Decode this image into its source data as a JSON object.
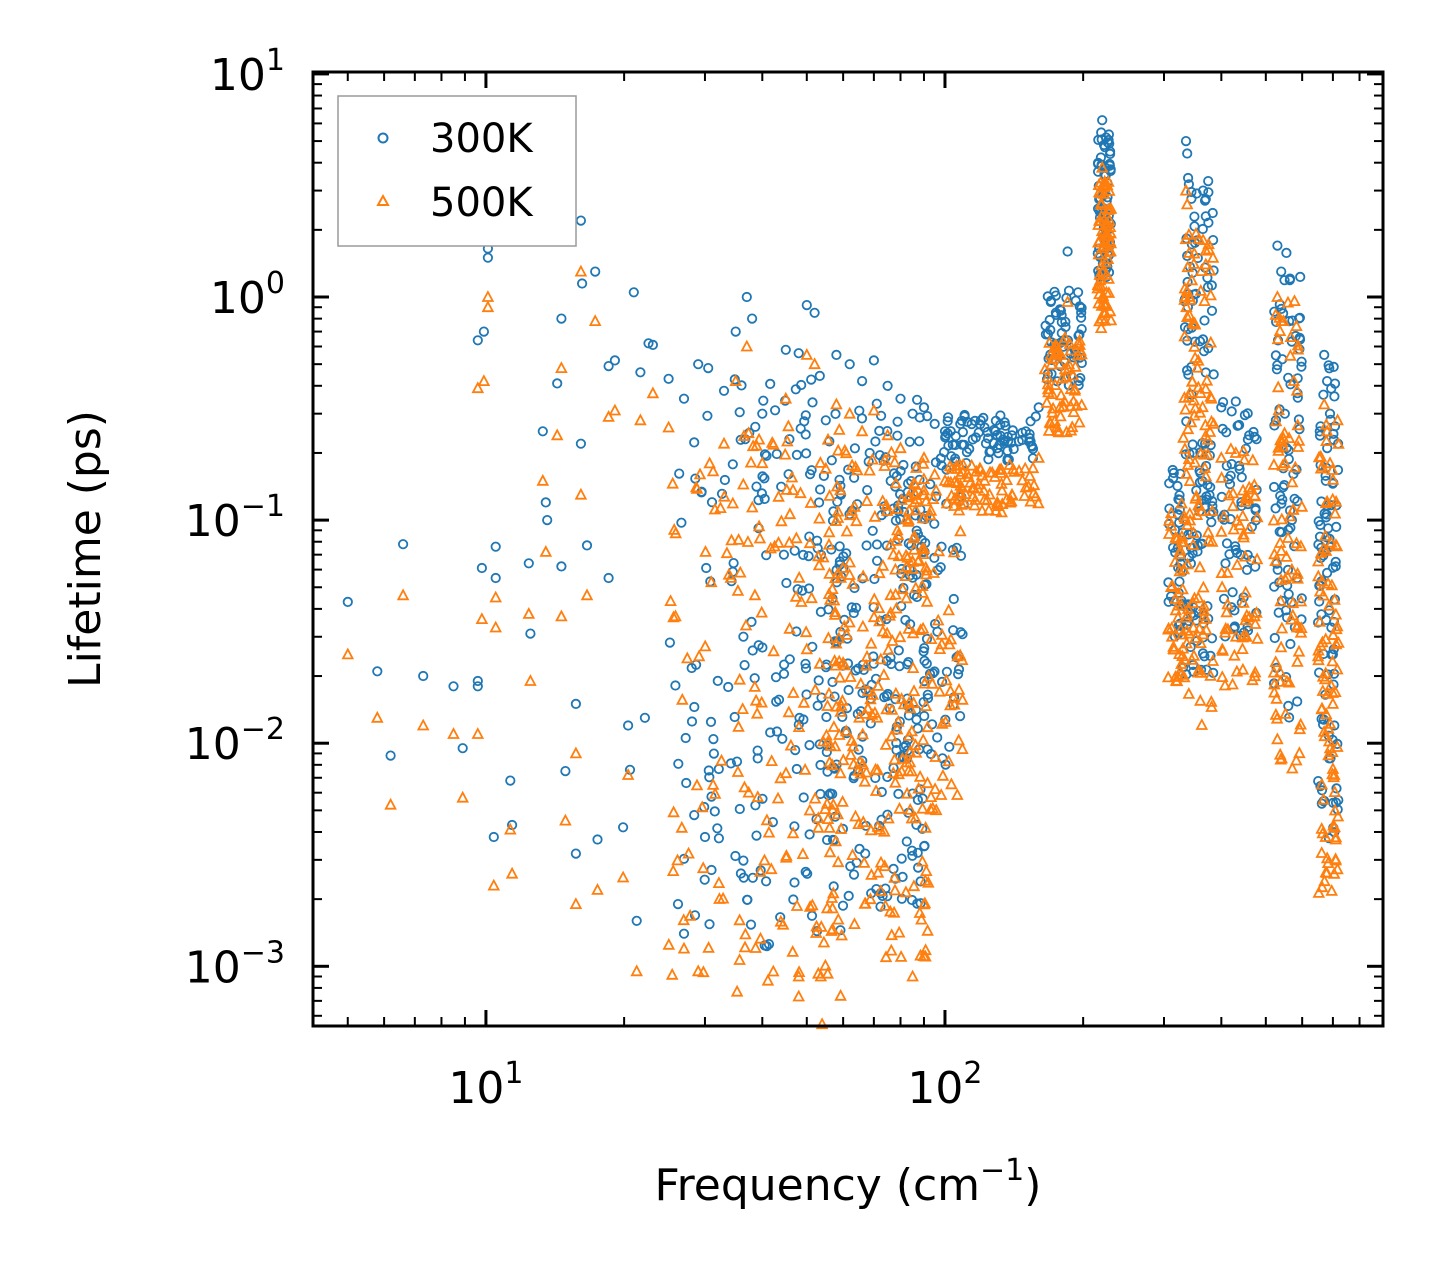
{
  "chart_data": {
    "type": "scatter",
    "title": "",
    "xlabel": "Frequency (cm",
    "xlabel_sup": "−1",
    "xlabel_end": ")",
    "ylabel": "Lifetime (ps)",
    "xscale": "log",
    "yscale": "log",
    "xlim": [
      4.2,
      900
    ],
    "ylim": [
      0.00054,
      10.2
    ],
    "x_ticks": [
      {
        "value": 10,
        "base": "10",
        "exp": "1"
      },
      {
        "value": 100,
        "base": "10",
        "exp": "2"
      }
    ],
    "y_ticks": [
      {
        "value": 0.001,
        "base": "10",
        "exp": "−3"
      },
      {
        "value": 0.01,
        "base": "10",
        "exp": "−2"
      },
      {
        "value": 0.1,
        "base": "10",
        "exp": "−1"
      },
      {
        "value": 1,
        "base": "10",
        "exp": "0"
      },
      {
        "value": 10,
        "base": "10",
        "exp": "1"
      }
    ],
    "legend_position": "top-left",
    "series": [
      {
        "name": "300K",
        "marker": "circle",
        "color": "#1f77b4",
        "points": [
          [
            5.0,
            0.043
          ],
          [
            5.8,
            0.021
          ],
          [
            6.2,
            0.0088
          ],
          [
            6.6,
            0.078
          ],
          [
            7.3,
            0.02
          ],
          [
            8.5,
            0.018
          ],
          [
            8.9,
            0.0095
          ],
          [
            9.6,
            0.019
          ],
          [
            9.6,
            0.018
          ],
          [
            9.8,
            0.061
          ],
          [
            10.4,
            0.0038
          ],
          [
            10.5,
            0.076
          ],
          [
            10.5,
            0.055
          ],
          [
            11.3,
            0.0068
          ],
          [
            11.4,
            0.0043
          ],
          [
            12.4,
            0.064
          ],
          [
            12.5,
            0.031
          ],
          [
            13.3,
            0.25
          ],
          [
            13.5,
            0.12
          ],
          [
            13.6,
            0.1
          ],
          [
            14.3,
            0.41
          ],
          [
            14.6,
            0.062
          ],
          [
            14.9,
            0.0075
          ],
          [
            15.7,
            0.015
          ],
          [
            15.7,
            0.0032
          ],
          [
            16.1,
            0.22
          ],
          [
            16.6,
            0.077
          ],
          [
            17.5,
            0.0037
          ],
          [
            18.5,
            0.49
          ],
          [
            18.5,
            0.055
          ],
          [
            19.9,
            0.0042
          ],
          [
            20.4,
            0.012
          ],
          [
            20.6,
            0.0076
          ],
          [
            21.0,
            1.05
          ],
          [
            21.3,
            0.0016
          ],
          [
            22.2,
            0.013
          ],
          [
            23.1,
            0.61
          ],
          [
            26.2,
            0.0019
          ],
          [
            27.0,
            0.0014
          ],
          [
            30.0,
            0.0038
          ],
          [
            9.6,
            0.64
          ],
          [
            9.9,
            0.7
          ],
          [
            10.1,
            1.5
          ],
          [
            10.1,
            1.65
          ],
          [
            14.6,
            0.8
          ],
          [
            16.1,
            2.2
          ],
          [
            17.3,
            1.3
          ],
          [
            16.2,
            1.15
          ],
          [
            19.1,
            0.52
          ],
          [
            21.7,
            0.46
          ],
          [
            22.6,
            0.62
          ],
          [
            25.0,
            0.43
          ],
          [
            27.0,
            0.35
          ],
          [
            29.0,
            0.5
          ],
          [
            30.5,
            0.48
          ],
          [
            33.0,
            0.38
          ],
          [
            35.0,
            0.7
          ],
          [
            37.0,
            1.0
          ],
          [
            38.0,
            0.8
          ],
          [
            40.0,
            0.3
          ],
          [
            45.0,
            0.58
          ],
          [
            48.0,
            0.56
          ],
          [
            50.0,
            0.92
          ],
          [
            52.0,
            0.85
          ],
          [
            55.0,
            0.28
          ],
          [
            58.0,
            0.55
          ],
          [
            62.0,
            0.5
          ],
          [
            66.0,
            0.42
          ],
          [
            70.0,
            0.52
          ],
          [
            75.0,
            0.4
          ],
          [
            80.0,
            0.35
          ],
          [
            85.0,
            0.3
          ],
          [
            90.0,
            0.32
          ],
          [
            95.0,
            0.27
          ],
          [
            100.0,
            0.25
          ],
          [
            108.0,
            0.27
          ],
          [
            115.0,
            0.23
          ],
          [
            122.0,
            0.26
          ],
          [
            130.0,
            0.21
          ],
          [
            140.0,
            0.24
          ],
          [
            150.0,
            0.25
          ],
          [
            160.0,
            0.32
          ],
          [
            170.0,
            0.95
          ],
          [
            178.0,
            0.88
          ],
          [
            185.0,
            1.6
          ],
          [
            195.0,
            1.05
          ],
          [
            220.0,
            6.2
          ],
          [
            222.0,
            4.8
          ],
          [
            224.0,
            3.5
          ],
          [
            226.0,
            2.8
          ],
          [
            335.0,
            5.0
          ],
          [
            337.0,
            4.4
          ],
          [
            340.0,
            3.2
          ],
          [
            365.0,
            3.0
          ],
          [
            370.0,
            2.3
          ],
          [
            385.0,
            0.45
          ],
          [
            400.0,
            0.32
          ],
          [
            430.0,
            0.34
          ],
          [
            460.0,
            0.24
          ],
          [
            530.0,
            1.7
          ],
          [
            540.0,
            1.3
          ],
          [
            550.0,
            0.3
          ],
          [
            570.0,
            0.1
          ],
          [
            585.0,
            0.055
          ],
          [
            670.0,
            0.55
          ],
          [
            680.0,
            0.42
          ],
          [
            690.0,
            0.3
          ],
          [
            700.0,
            0.025
          ],
          [
            705.0,
            0.012
          ],
          [
            710.0,
            0.062
          ]
        ]
      },
      {
        "name": "500K",
        "marker": "triangle",
        "color": "#ff7f0e",
        "points": [
          [
            5.0,
            0.025
          ],
          [
            5.8,
            0.013
          ],
          [
            6.2,
            0.0053
          ],
          [
            6.6,
            0.046
          ],
          [
            7.3,
            0.012
          ],
          [
            8.5,
            0.011
          ],
          [
            8.9,
            0.0057
          ],
          [
            9.6,
            0.011
          ],
          [
            9.8,
            0.036
          ],
          [
            10.4,
            0.0023
          ],
          [
            10.5,
            0.045
          ],
          [
            10.5,
            0.033
          ],
          [
            11.3,
            0.0041
          ],
          [
            11.4,
            0.0026
          ],
          [
            12.4,
            0.038
          ],
          [
            12.5,
            0.019
          ],
          [
            13.3,
            0.15
          ],
          [
            13.5,
            0.072
          ],
          [
            14.3,
            0.24
          ],
          [
            14.6,
            0.037
          ],
          [
            14.9,
            0.0045
          ],
          [
            15.7,
            0.009
          ],
          [
            15.7,
            0.0019
          ],
          [
            16.1,
            0.13
          ],
          [
            16.6,
            0.046
          ],
          [
            17.5,
            0.0022
          ],
          [
            18.5,
            0.29
          ],
          [
            19.9,
            0.0025
          ],
          [
            20.4,
            0.0072
          ],
          [
            21.3,
            0.00095
          ],
          [
            9.6,
            0.39
          ],
          [
            9.9,
            0.42
          ],
          [
            10.1,
            0.9
          ],
          [
            10.1,
            1.0
          ],
          [
            16.1,
            1.3
          ],
          [
            14.6,
            0.48
          ],
          [
            17.3,
            0.78
          ],
          [
            19.1,
            0.31
          ],
          [
            21.7,
            0.28
          ],
          [
            23.1,
            0.37
          ],
          [
            25.0,
            0.26
          ],
          [
            27.0,
            0.0012
          ],
          [
            29.0,
            0.00095
          ],
          [
            33.0,
            0.22
          ],
          [
            35.0,
            0.42
          ],
          [
            37.0,
            0.6
          ],
          [
            40.0,
            0.18
          ],
          [
            45.0,
            0.35
          ],
          [
            48.0,
            0.0009
          ],
          [
            50.0,
            0.55
          ],
          [
            52.0,
            0.5
          ],
          [
            54.0,
            0.00055
          ],
          [
            55.0,
            0.17
          ],
          [
            58.0,
            0.33
          ],
          [
            62.0,
            0.3
          ],
          [
            66.0,
            0.25
          ],
          [
            70.0,
            0.31
          ],
          [
            75.0,
            0.24
          ],
          [
            80.0,
            0.21
          ],
          [
            85.0,
            0.0009
          ],
          [
            90.0,
            0.19
          ],
          [
            95.0,
            0.16
          ],
          [
            100.0,
            0.15
          ],
          [
            108.0,
            0.16
          ],
          [
            115.0,
            0.14
          ],
          [
            122.0,
            0.15
          ],
          [
            130.0,
            0.12
          ],
          [
            140.0,
            0.13
          ],
          [
            150.0,
            0.14
          ],
          [
            160.0,
            0.19
          ],
          [
            170.0,
            0.55
          ],
          [
            178.0,
            0.5
          ],
          [
            185.0,
            0.95
          ],
          [
            195.0,
            0.62
          ],
          [
            220.0,
            3.8
          ],
          [
            222.0,
            2.9
          ],
          [
            224.0,
            2.1
          ],
          [
            226.0,
            1.7
          ],
          [
            335.0,
            3.0
          ],
          [
            337.0,
            2.6
          ],
          [
            340.0,
            1.9
          ],
          [
            365.0,
            1.8
          ],
          [
            370.0,
            1.4
          ],
          [
            385.0,
            0.27
          ],
          [
            400.0,
            0.19
          ],
          [
            430.0,
            0.2
          ],
          [
            460.0,
            0.14
          ],
          [
            530.0,
            1.0
          ],
          [
            540.0,
            0.78
          ],
          [
            550.0,
            0.18
          ],
          [
            570.0,
            0.06
          ],
          [
            585.0,
            0.033
          ],
          [
            670.0,
            0.33
          ],
          [
            680.0,
            0.25
          ],
          [
            690.0,
            0.18
          ],
          [
            700.0,
            0.015
          ],
          [
            705.0,
            0.0072
          ],
          [
            710.0,
            0.0037
          ]
        ]
      }
    ],
    "clusters": [
      {
        "xmin": 25,
        "xmax": 34,
        "ymin": 0.0015,
        "ymax": 0.3,
        "density": 40
      },
      {
        "xmin": 34,
        "xmax": 60,
        "ymin": 0.0012,
        "ymax": 0.45,
        "density": 140
      },
      {
        "xmin": 55,
        "xmax": 92,
        "ymin": 0.0018,
        "ymax": 0.35,
        "density": 200
      },
      {
        "xmin": 78,
        "xmax": 110,
        "ymin": 0.008,
        "ymax": 0.25,
        "density": 90
      },
      {
        "xmin": 100,
        "xmax": 160,
        "ymin": 0.18,
        "ymax": 0.3,
        "density": 70,
        "series_ratio": 0.6
      },
      {
        "xmin": 165,
        "xmax": 200,
        "ymin": 0.4,
        "ymax": 1.1,
        "density": 60
      },
      {
        "xmin": 215,
        "xmax": 230,
        "ymin": 1.2,
        "ymax": 5.5,
        "density": 70
      },
      {
        "xmin": 305,
        "xmax": 330,
        "ymin": 0.03,
        "ymax": 0.2,
        "density": 40
      },
      {
        "xmin": 330,
        "xmax": 385,
        "ymin": 0.02,
        "ymax": 3.5,
        "density": 120
      },
      {
        "xmin": 400,
        "xmax": 480,
        "ymin": 0.03,
        "ymax": 0.35,
        "density": 60
      },
      {
        "xmin": 520,
        "xmax": 600,
        "ymin": 0.012,
        "ymax": 1.6,
        "density": 80
      },
      {
        "xmin": 650,
        "xmax": 720,
        "ymin": 0.0035,
        "ymax": 0.5,
        "density": 90
      }
    ]
  }
}
